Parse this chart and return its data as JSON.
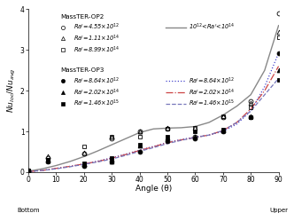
{
  "xlabel": "Angle (θ)",
  "xlim": [
    0,
    90
  ],
  "ylim": [
    0,
    4
  ],
  "yticks": [
    0,
    1,
    2,
    3,
    4
  ],
  "xticks": [
    0,
    10,
    20,
    30,
    40,
    50,
    60,
    70,
    80,
    90
  ],
  "angles": [
    0,
    7,
    20,
    30,
    40,
    50,
    60,
    70,
    80,
    90
  ],
  "op2_s1_data": [
    0.03,
    0.35,
    0.46,
    0.83,
    0.99,
    1.07,
    0.88,
    1.35,
    1.75,
    3.9
  ],
  "op2_s2_data": [
    0.03,
    0.4,
    0.48,
    0.87,
    1.0,
    1.08,
    1.08,
    1.38,
    1.7,
    3.45
  ],
  "op2_s3_data": [
    0.03,
    0.3,
    0.62,
    0.86,
    0.88,
    1.06,
    1.09,
    1.38,
    1.6,
    3.32
  ],
  "op3_s1_data": [
    0.02,
    0.25,
    0.16,
    0.25,
    0.49,
    0.75,
    0.83,
    1.0,
    1.35,
    2.92
  ],
  "op3_s2_data": [
    0.02,
    0.28,
    0.2,
    0.26,
    0.65,
    0.84,
    0.87,
    1.02,
    1.37,
    2.5
  ],
  "op3_s3_data": [
    0.02,
    0.3,
    0.22,
    0.35,
    0.68,
    0.88,
    0.99,
    1.04,
    1.35,
    2.27
  ],
  "fit_angles": [
    0,
    5,
    10,
    15,
    20,
    25,
    30,
    35,
    40,
    45,
    50,
    55,
    60,
    65,
    70,
    75,
    80,
    85,
    90
  ],
  "op2_fit": [
    0.02,
    0.08,
    0.16,
    0.26,
    0.38,
    0.52,
    0.67,
    0.82,
    0.97,
    1.06,
    1.08,
    1.09,
    1.12,
    1.22,
    1.4,
    1.62,
    1.9,
    2.5,
    3.6
  ],
  "op3_s1_fit": [
    0.01,
    0.04,
    0.09,
    0.14,
    0.2,
    0.27,
    0.35,
    0.44,
    0.54,
    0.63,
    0.73,
    0.8,
    0.86,
    0.91,
    1.0,
    1.18,
    1.5,
    2.1,
    2.92
  ],
  "op3_s2_fit": [
    0.01,
    0.04,
    0.09,
    0.14,
    0.2,
    0.26,
    0.34,
    0.43,
    0.53,
    0.62,
    0.72,
    0.79,
    0.85,
    0.91,
    1.02,
    1.22,
    1.55,
    2.0,
    2.6
  ],
  "op3_s3_fit": [
    0.01,
    0.04,
    0.08,
    0.13,
    0.19,
    0.25,
    0.32,
    0.41,
    0.51,
    0.6,
    0.7,
    0.78,
    0.85,
    0.91,
    1.02,
    1.22,
    1.5,
    1.9,
    2.3
  ],
  "color_op2_fit": "#888888",
  "color_op3_s1": "#4444cc",
  "color_op3_s2": "#cc4444",
  "color_op3_s3": "#7777bb",
  "label_op2": "MassTER-OP2",
  "label_op3": "MassTER-OP3",
  "label_op2_s1": "$Ra'$=4.55×10$^{12}$",
  "label_op2_s2": "$Ra'$=1.11×10$^{14}$",
  "label_op2_s3": "$Ra'$=8.99×10$^{14}$",
  "label_op3_s1": "$Ra'$=8.64×10$^{12}$",
  "label_op3_s2": "$Ra'$=2.02×10$^{14}$",
  "label_op3_s3": "$Ra'$=1.46×10$^{15}$",
  "label_fit": "10$^{12}$<$Ra'$<10$^{14}$",
  "bg_color": "#ffffff"
}
